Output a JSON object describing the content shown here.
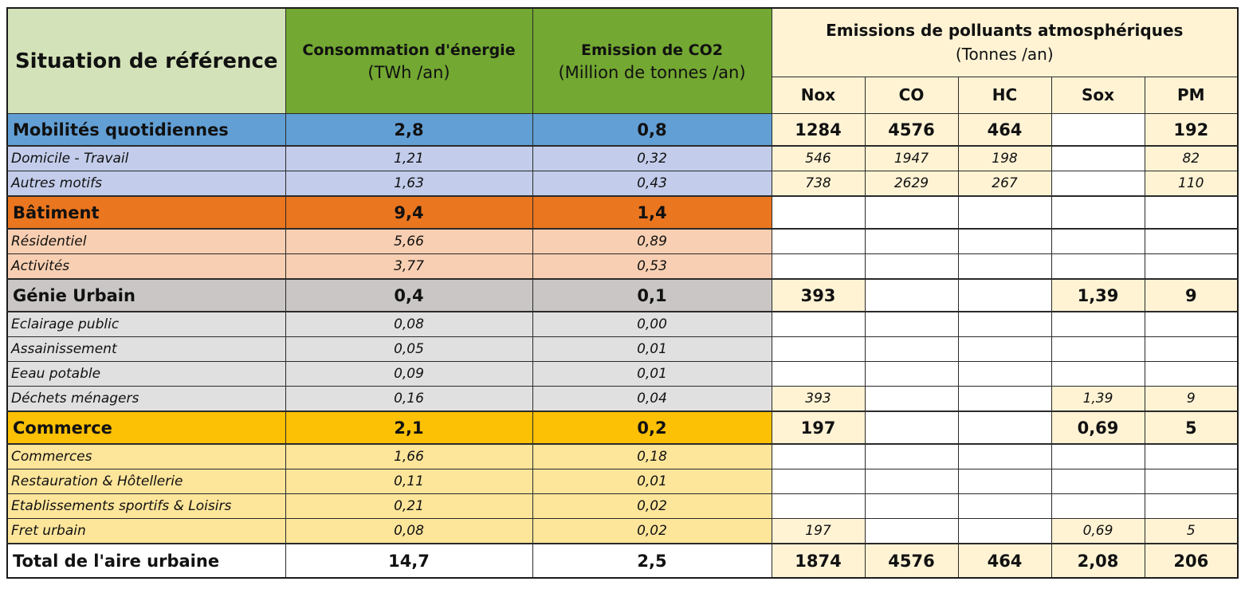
{
  "colors": {
    "header_label_bg": "#d3e2b8",
    "header_green_bg": "#73a832",
    "pollutant_bg": "#fff3d4",
    "mobilites": "#629fd5",
    "mobilites_sub": "#c3cdeb",
    "batiment": "#ea761f",
    "batiment_sub": "#f8cfb2",
    "genie": "#c9c6c5",
    "genie_sub": "#e0e0e0",
    "commerce": "#fcc004",
    "commerce_sub": "#fde59a"
  },
  "header": {
    "label": "Situation de référence",
    "energy": {
      "title": "Consommation d'énergie",
      "unit": "(TWh /an)"
    },
    "co2": {
      "title": "Emission de CO2",
      "unit": "(Million de tonnes /an)"
    },
    "pollutants": {
      "title": "Emissions de polluants atmosphériques",
      "unit": "(Tonnes /an)",
      "columns": [
        "Nox",
        "CO",
        "HC",
        "Sox",
        "PM"
      ]
    }
  },
  "rows": [
    {
      "type": "category",
      "group": "mob",
      "label": "Mobilités quotidiennes",
      "energy": "2,8",
      "co2": "0,8",
      "pollutants": [
        "1284",
        "4576",
        "464",
        "",
        "192"
      ]
    },
    {
      "type": "sub",
      "group": "mob",
      "label": "Domicile - Travail",
      "energy": "1,21",
      "co2": "0,32",
      "pollutants": [
        "546",
        "1947",
        "198",
        "",
        "82"
      ]
    },
    {
      "type": "sub",
      "group": "mob",
      "label": "Autres motifs",
      "energy": "1,63",
      "co2": "0,43",
      "pollutants": [
        "738",
        "2629",
        "267",
        "",
        "110"
      ]
    },
    {
      "type": "category",
      "group": "bat",
      "label": "Bâtiment",
      "energy": "9,4",
      "co2": "1,4",
      "pollutants": [
        "",
        "",
        "",
        "",
        ""
      ]
    },
    {
      "type": "sub",
      "group": "bat",
      "label": "Résidentiel",
      "energy": "5,66",
      "co2": "0,89",
      "pollutants": [
        "",
        "",
        "",
        "",
        ""
      ]
    },
    {
      "type": "sub",
      "group": "bat",
      "label": "Activités",
      "energy": "3,77",
      "co2": "0,53",
      "pollutants": [
        "",
        "",
        "",
        "",
        ""
      ]
    },
    {
      "type": "category",
      "group": "gen",
      "label": "Génie Urbain",
      "energy": "0,4",
      "co2": "0,1",
      "pollutants": [
        "393",
        "",
        "",
        "1,39",
        "9"
      ]
    },
    {
      "type": "sub",
      "group": "gen",
      "label": "Eclairage public",
      "energy": "0,08",
      "co2": "0,00",
      "pollutants": [
        "",
        "",
        "",
        "",
        ""
      ]
    },
    {
      "type": "sub",
      "group": "gen",
      "label": "Assainissement",
      "energy": "0,05",
      "co2": "0,01",
      "pollutants": [
        "",
        "",
        "",
        "",
        ""
      ]
    },
    {
      "type": "sub",
      "group": "gen",
      "label": "Eeau potable",
      "energy": "0,09",
      "co2": "0,01",
      "pollutants": [
        "",
        "",
        "",
        "",
        ""
      ]
    },
    {
      "type": "sub",
      "group": "gen",
      "label": "Déchets ménagers",
      "energy": "0,16",
      "co2": "0,04",
      "pollutants": [
        "393",
        "",
        "",
        "1,39",
        "9"
      ]
    },
    {
      "type": "category",
      "group": "com",
      "label": "Commerce",
      "energy": "2,1",
      "co2": "0,2",
      "pollutants": [
        "197",
        "",
        "",
        "0,69",
        "5"
      ]
    },
    {
      "type": "sub",
      "group": "com",
      "label": "Commerces",
      "energy": "1,66",
      "co2": "0,18",
      "pollutants": [
        "",
        "",
        "",
        "",
        ""
      ]
    },
    {
      "type": "sub",
      "group": "com",
      "label": "Restauration & Hôtellerie",
      "energy": "0,11",
      "co2": "0,01",
      "pollutants": [
        "",
        "",
        "",
        "",
        ""
      ]
    },
    {
      "type": "sub",
      "group": "com",
      "label": "Etablissements sportifs & Loisirs",
      "energy": "0,21",
      "co2": "0,02",
      "pollutants": [
        "",
        "",
        "",
        "",
        ""
      ]
    },
    {
      "type": "sub",
      "group": "com",
      "label": "Fret urbain",
      "energy": "0,08",
      "co2": "0,02",
      "pollutants": [
        "197",
        "",
        "",
        "0,69",
        "5"
      ]
    },
    {
      "type": "total",
      "group": "total",
      "label": "Total de l'aire urbaine",
      "energy": "14,7",
      "co2": "2,5",
      "pollutants": [
        "1874",
        "4576",
        "464",
        "2,08",
        "206"
      ]
    }
  ]
}
